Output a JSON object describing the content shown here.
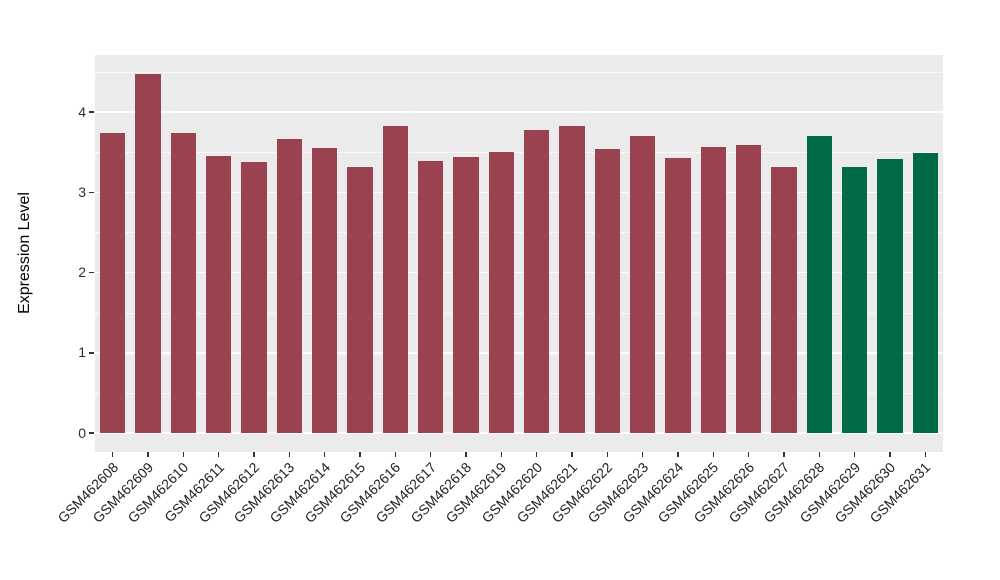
{
  "figure": {
    "background_color": "#FFFFFF",
    "panel_background_color": "#EBEBEB",
    "grid_color": "#FFFFFF",
    "tick_color": "#333333",
    "axis_text_color": "#2e2e2e",
    "axis_title_color": "#000000"
  },
  "chart_data": {
    "type": "bar",
    "title": "",
    "xlabel": "",
    "ylabel": "Expression Level",
    "ylim": [
      0,
      4.7
    ],
    "yticks": [
      0,
      1,
      2,
      3,
      4
    ],
    "grid": "major and minor horizontal white gridlines on gray panel",
    "legend_position": "none",
    "x_label_rotation_deg": 45,
    "categories": [
      "GSM462608",
      "GSM462609",
      "GSM462610",
      "GSM462611",
      "GSM462612",
      "GSM462613",
      "GSM462614",
      "GSM462615",
      "GSM462616",
      "GSM462617",
      "GSM462618",
      "GSM462619",
      "GSM462620",
      "GSM462621",
      "GSM462622",
      "GSM462623",
      "GSM462624",
      "GSM462625",
      "GSM462626",
      "GSM462627",
      "GSM462628",
      "GSM462629",
      "GSM462630",
      "GSM462631"
    ],
    "values": [
      3.74,
      4.47,
      3.74,
      3.45,
      3.38,
      3.66,
      3.55,
      3.31,
      3.83,
      3.39,
      3.44,
      3.5,
      3.77,
      3.82,
      3.54,
      3.7,
      3.43,
      3.56,
      3.59,
      3.32,
      3.7,
      3.32,
      3.42,
      3.49
    ],
    "bar_color_keys": [
      "red",
      "red",
      "red",
      "red",
      "red",
      "red",
      "red",
      "red",
      "red",
      "red",
      "red",
      "red",
      "red",
      "red",
      "red",
      "red",
      "red",
      "red",
      "red",
      "red",
      "green",
      "green",
      "green",
      "green"
    ],
    "palette": {
      "red": "#9B4250",
      "green": "#006A48"
    }
  }
}
